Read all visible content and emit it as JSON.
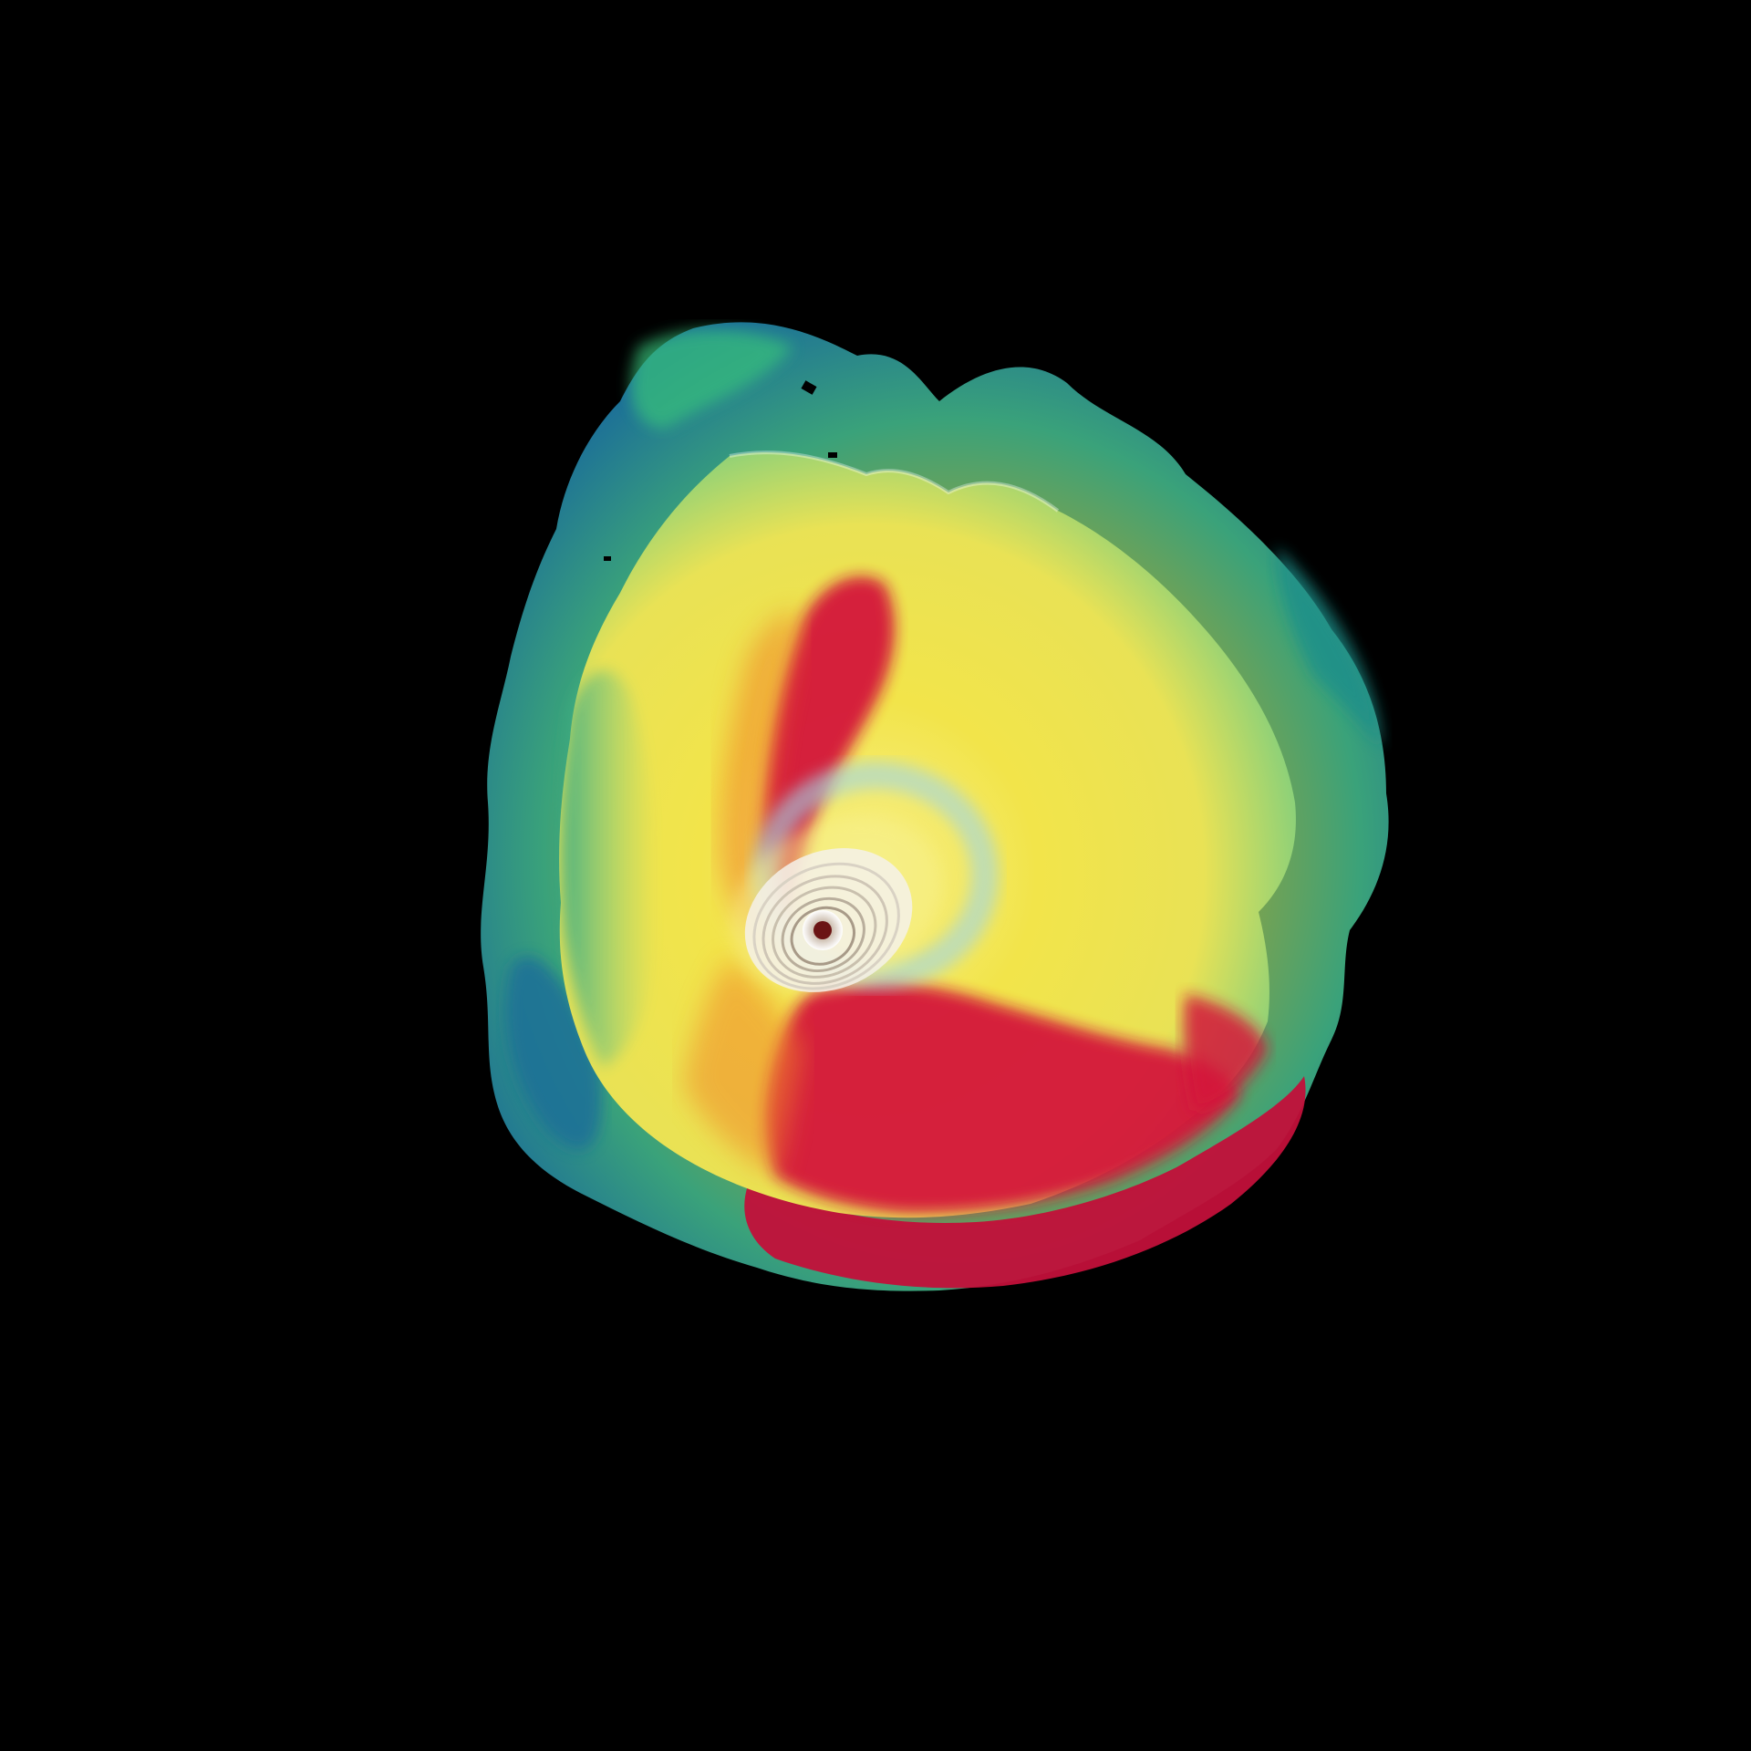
{
  "scene": {
    "background": "#000000",
    "palette": {
      "teal": "#1f8f8a",
      "blue": "#1c6f98",
      "green": "#39c27a",
      "olive": "#8c9a2b",
      "yellow": "#f2e44a",
      "pale_yellow": "#f7f08a",
      "orange": "#f08a2b",
      "red": "#d4123a",
      "crimson": "#c2103a",
      "white": "#f4f1ea",
      "light_blue": "#9fd6e8"
    }
  }
}
